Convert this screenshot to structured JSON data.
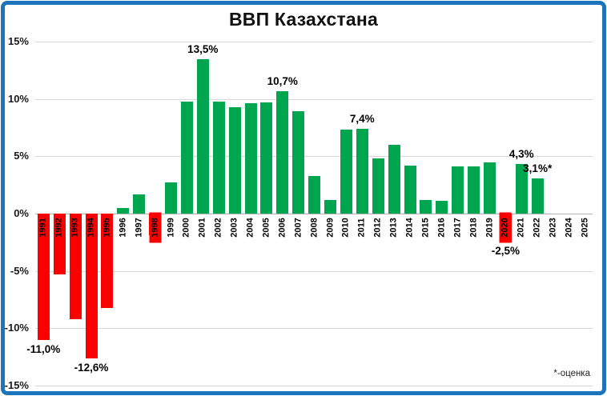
{
  "chart_data": {
    "type": "bar",
    "title": "ВВП Казахстана",
    "footnote": "*-оценка",
    "xlabel": "",
    "ylabel": "",
    "ylim": [
      -15,
      15
    ],
    "grid": true,
    "legend": "none",
    "colors": {
      "positive_bar": "#00A550",
      "negative_bar": "#FB0000",
      "frame_border": "#1C74BC",
      "gridline": "#D8D8D8"
    },
    "y_ticks": [
      {
        "value": 15,
        "label": "15%"
      },
      {
        "value": 10,
        "label": "10%"
      },
      {
        "value": 5,
        "label": "5%"
      },
      {
        "value": 0,
        "label": "0%"
      },
      {
        "value": -5,
        "label": "-5%"
      },
      {
        "value": -10,
        "label": "-10%"
      },
      {
        "value": -15,
        "label": "-15%"
      }
    ],
    "points": [
      {
        "year": "1991",
        "value": -11.0,
        "label": "-11,0%",
        "label_position": "below_bar"
      },
      {
        "year": "1992",
        "value": -5.3
      },
      {
        "year": "1993",
        "value": -9.2
      },
      {
        "year": "1994",
        "value": -12.6,
        "label": "-12,6%",
        "label_position": "below_bar"
      },
      {
        "year": "1995",
        "value": -8.2
      },
      {
        "year": "1996",
        "value": 0.5
      },
      {
        "year": "1997",
        "value": 1.7
      },
      {
        "year": "1998",
        "value": -1.9,
        "year_label_fill": true
      },
      {
        "year": "1999",
        "value": 2.7
      },
      {
        "year": "2000",
        "value": 9.8
      },
      {
        "year": "2001",
        "value": 13.5,
        "label": "13,5%",
        "label_position": "above"
      },
      {
        "year": "2002",
        "value": 9.8
      },
      {
        "year": "2003",
        "value": 9.3
      },
      {
        "year": "2004",
        "value": 9.6
      },
      {
        "year": "2005",
        "value": 9.7
      },
      {
        "year": "2006",
        "value": 10.7,
        "label": "10,7%",
        "label_position": "above"
      },
      {
        "year": "2007",
        "value": 8.9
      },
      {
        "year": "2008",
        "value": 3.3
      },
      {
        "year": "2009",
        "value": 1.2
      },
      {
        "year": "2010",
        "value": 7.3
      },
      {
        "year": "2011",
        "value": 7.4,
        "label": "7,4%",
        "label_position": "above"
      },
      {
        "year": "2012",
        "value": 4.8
      },
      {
        "year": "2013",
        "value": 6.0
      },
      {
        "year": "2014",
        "value": 4.2
      },
      {
        "year": "2015",
        "value": 1.2
      },
      {
        "year": "2016",
        "value": 1.1
      },
      {
        "year": "2017",
        "value": 4.1
      },
      {
        "year": "2018",
        "value": 4.1
      },
      {
        "year": "2019",
        "value": 4.5
      },
      {
        "year": "2020",
        "value": -2.5,
        "label": "-2,5%",
        "label_position": "below_axis",
        "year_label_fill": true
      },
      {
        "year": "2021",
        "value": 4.3,
        "label": "4,3%",
        "label_position": "above"
      },
      {
        "year": "2022",
        "value": 3.1,
        "label": "3,1%*",
        "label_position": "above"
      },
      {
        "year": "2023",
        "value": null
      },
      {
        "year": "2024",
        "value": null
      },
      {
        "year": "2025",
        "value": null
      }
    ]
  }
}
